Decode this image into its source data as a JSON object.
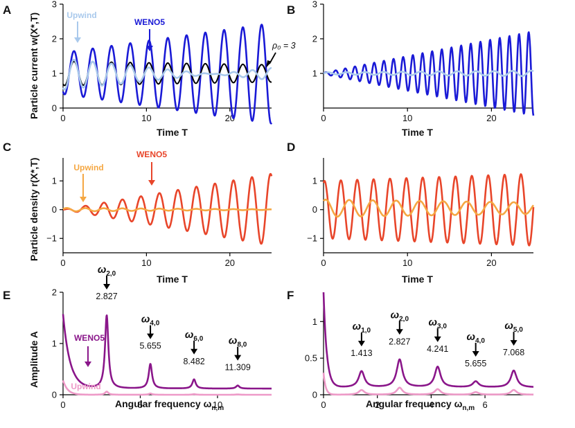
{
  "colors": {
    "weno_blue": "#1a1ad6",
    "upwind_blue": "#a9c9ec",
    "black": "#000000",
    "weno_red": "#e8452a",
    "upwind_orange": "#f5a742",
    "weno_purple": "#8a168a",
    "upwind_pink": "#ee9ac8"
  },
  "chart_data": [
    {
      "panel": "A",
      "type": "line",
      "xlabel": "Time T",
      "ylabel": "Particle current  w(X*,T)",
      "xlim": [
        0,
        25
      ],
      "ylim": [
        0,
        3
      ],
      "xticks": [
        "0",
        "10",
        "20"
      ],
      "yticks": [
        "0",
        "1",
        "2",
        "3"
      ],
      "annotations": {
        "upwind": "Upwind",
        "weno": "WENO5",
        "rho": "ρ₀ = 3"
      },
      "series": [
        {
          "name": "WENO5",
          "model": {
            "base": 1.0,
            "a0": 0.6,
            "a1": 0.034,
            "period": 2.25,
            "phase": 4.2
          }
        },
        {
          "name": "ρ₀ = 3",
          "model": {
            "base": 1.0,
            "a0": 0.35,
            "a1": -0.004,
            "period": 2.25,
            "phase": 4.2
          }
        },
        {
          "name": "Upwind",
          "model": {
            "base": 0.98,
            "a0": 0.45,
            "a1": -0.025,
            "period": 2.25,
            "phase": 4.2
          }
        }
      ]
    },
    {
      "panel": "B",
      "type": "line",
      "xlabel": "Time T",
      "ylabel": "",
      "xlim": [
        0,
        25
      ],
      "ylim": [
        0,
        3
      ],
      "xticks": [
        "0",
        "10",
        "20"
      ],
      "yticks": [
        "1",
        "2",
        "3"
      ],
      "series": [
        {
          "name": "WENO5",
          "model": {
            "base": 1.0,
            "a0": 0.02,
            "a1": 0.048,
            "period": 1.15,
            "phase": 0
          }
        },
        {
          "name": "Upwind",
          "model": {
            "base": 1.0,
            "a0": 0.03,
            "a1": 0.002,
            "period": 2.2,
            "phase": 0
          }
        }
      ]
    },
    {
      "panel": "C",
      "type": "line",
      "xlabel": "Time  T",
      "ylabel": "Particle density  r(X*,T)",
      "xlim": [
        0,
        25
      ],
      "ylim": [
        -1.5,
        1.8
      ],
      "xticks": [
        "0",
        "10",
        "20"
      ],
      "yticks": [
        "−1",
        "0",
        "1"
      ],
      "annotations": {
        "upwind": "Upwind",
        "weno": "WENO5"
      },
      "series": [
        {
          "name": "WENO5",
          "model": {
            "base": 0.0,
            "a0": 0.0,
            "a1": 0.05,
            "period": 2.22,
            "phase": 0.3
          }
        },
        {
          "name": "Upwind",
          "model": {
            "base": 0.0,
            "a0": 0.06,
            "a1": -0.002,
            "period": 2.22,
            "phase": 0.3
          }
        }
      ]
    },
    {
      "panel": "D",
      "type": "line",
      "xlabel": "Time T",
      "ylabel": "",
      "xlim": [
        0,
        25
      ],
      "ylim": [
        -1.5,
        1.8
      ],
      "xticks": [
        "0",
        "10",
        "20"
      ],
      "yticks": [
        "−1",
        "0",
        "1"
      ],
      "series": [
        {
          "name": "WENO5",
          "model": {
            "base": 0.0,
            "a0": 1.0,
            "a1": 0.01,
            "period": 1.95,
            "phase": 1.2
          }
        },
        {
          "name": "Upwind",
          "model": {
            "base": 0.05,
            "a0": 0.3,
            "a1": -0.004,
            "period": 2.8,
            "phase": 1.0
          }
        }
      ]
    },
    {
      "panel": "E",
      "type": "line",
      "xlabel": "Angular frequency  ω",
      "xlabel_sub": "n,m",
      "ylabel": "Amplitude  A",
      "xlim": [
        0,
        13.5
      ],
      "ylim": [
        0,
        2
      ],
      "xticks": [
        "0",
        "5",
        "10"
      ],
      "yticks": [
        "0",
        "1",
        "2"
      ],
      "annotations": {
        "upwind": "Upwind",
        "weno": "WENO5"
      },
      "peaks": [
        {
          "label": "ω",
          "sub": "2,0",
          "value": "2.827",
          "x": 2.827,
          "height": 1.55
        },
        {
          "label": "ω",
          "sub": "4,0",
          "value": "5.655",
          "x": 5.655,
          "height": 0.6
        },
        {
          "label": "ω",
          "sub": "6,0",
          "value": "8.482",
          "x": 8.482,
          "height": 0.3
        },
        {
          "label": "ω",
          "sub": "8,0",
          "value": "11.309",
          "x": 11.309,
          "height": 0.18
        }
      ],
      "series": [
        {
          "name": "WENO5",
          "baseline": 0.12,
          "dc": 1.45,
          "dc_decay": 0.45
        },
        {
          "name": "Upwind",
          "baseline": 0.0,
          "dc": 0.28,
          "dc_decay": 0.3,
          "peak_scale": 0.04
        }
      ]
    },
    {
      "panel": "F",
      "type": "line",
      "xlabel": "Angular frequency  ω",
      "xlabel_sub": "n,m",
      "ylabel": "",
      "xlim": [
        0,
        7.8
      ],
      "ylim": [
        0,
        1.4
      ],
      "xticks": [
        "0",
        "2",
        "4",
        "6"
      ],
      "yticks": [
        "0",
        "0.5",
        "1"
      ],
      "peaks": [
        {
          "label": "ω",
          "sub": "1,0",
          "value": "1.413",
          "x": 1.413,
          "height": 0.32
        },
        {
          "label": "ω",
          "sub": "2,0",
          "value": "2.827",
          "x": 2.827,
          "height": 0.48
        },
        {
          "label": "ω",
          "sub": "3,0",
          "value": "4.241",
          "x": 4.241,
          "height": 0.38
        },
        {
          "label": "ω",
          "sub": "4,0",
          "value": "5.655",
          "x": 5.655,
          "height": 0.18
        },
        {
          "label": "ω",
          "sub": "5,0",
          "value": "7.068",
          "x": 7.068,
          "height": 0.33
        }
      ],
      "series": [
        {
          "name": "WENO5",
          "baseline": 0.1,
          "dc": 1.3,
          "dc_decay": 0.12
        },
        {
          "name": "Upwind",
          "baseline": 0.0,
          "dc": 0.3,
          "dc_decay": 0.08,
          "peak_scale": 0.2
        }
      ]
    }
  ]
}
